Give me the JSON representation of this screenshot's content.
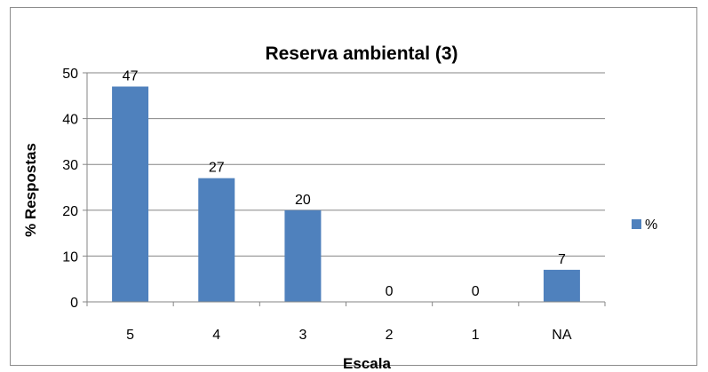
{
  "chart_data": {
    "type": "bar",
    "title": "Reserva ambiental (3)",
    "xlabel": "Escala",
    "ylabel": "% Respostas",
    "categories": [
      "5",
      "4",
      "3",
      "2",
      "1",
      "NA"
    ],
    "series": [
      {
        "name": "%",
        "values": [
          47,
          27,
          20,
          0,
          0,
          7
        ],
        "color": "#4f81bd"
      }
    ],
    "ylim": [
      0,
      50
    ],
    "yticks": [
      "0",
      "10",
      "20",
      "30",
      "40",
      "50"
    ],
    "grid": true,
    "legend_position": "right"
  }
}
